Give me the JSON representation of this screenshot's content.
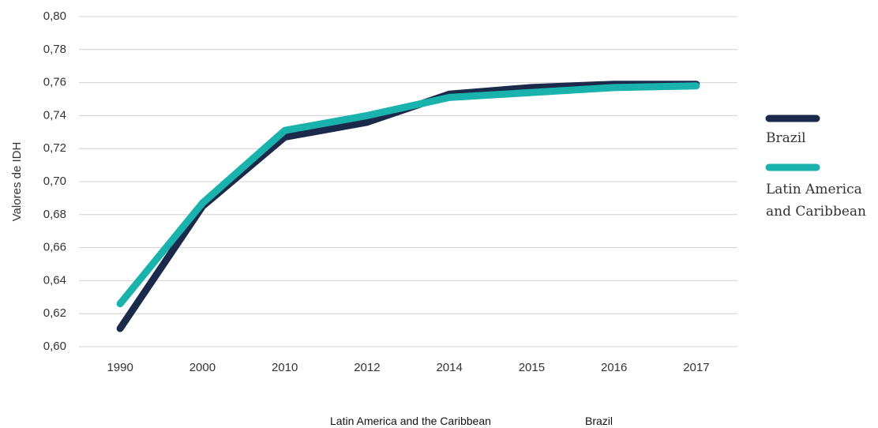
{
  "chart_data": {
    "type": "line",
    "y_label": "Valores de IDH",
    "categories": [
      "1990",
      "2000",
      "2010",
      "2012",
      "2014",
      "2015",
      "2016",
      "2017"
    ],
    "series": [
      {
        "name": "Brazil",
        "color": "#1b2a4a",
        "values": [
          0.611,
          0.685,
          0.727,
          0.736,
          0.753,
          0.757,
          0.759,
          0.759
        ]
      },
      {
        "name": "Latin America and Caribbean",
        "color": "#1ab2ac",
        "values": [
          0.626,
          0.687,
          0.731,
          0.74,
          0.751,
          0.754,
          0.757,
          0.758
        ]
      }
    ],
    "ylim": [
      0.6,
      0.8
    ],
    "yticks": [
      {
        "value": 0.6,
        "label": "0,60"
      },
      {
        "value": 0.62,
        "label": "0,62"
      },
      {
        "value": 0.64,
        "label": "0,64"
      },
      {
        "value": 0.66,
        "label": "0,66"
      },
      {
        "value": 0.68,
        "label": "0,68"
      },
      {
        "value": 0.7,
        "label": "0,70"
      },
      {
        "value": 0.72,
        "label": "0,72"
      },
      {
        "value": 0.74,
        "label": "0,74"
      },
      {
        "value": 0.76,
        "label": "0,76"
      },
      {
        "value": 0.78,
        "label": "0,78"
      },
      {
        "value": 0.8,
        "label": "0,80"
      }
    ],
    "grid": true,
    "legend": "right",
    "bottom_legend": [
      "Latin America and the Caribbean",
      "Brazil"
    ]
  }
}
